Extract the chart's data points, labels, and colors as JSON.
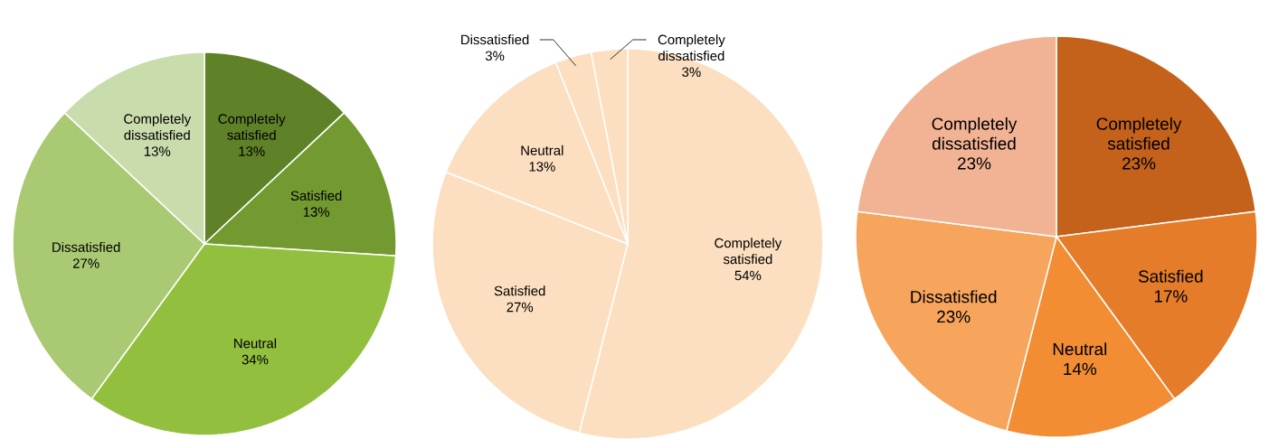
{
  "chart_data": [
    {
      "type": "pie",
      "categories": [
        "Completely satisfied",
        "Satisfied",
        "Neutral",
        "Dissatisfied",
        "Completely dissatisfied"
      ],
      "values": [
        13,
        13,
        34,
        27,
        13
      ],
      "colors": [
        "#5f8128",
        "#739a30",
        "#92c03e",
        "#a9c973",
        "#c9dcac"
      ],
      "value_labels": [
        "13%",
        "13%",
        "34%",
        "27%",
        "13%"
      ]
    },
    {
      "type": "pie",
      "categories": [
        "Completely satisfied",
        "Satisfied",
        "Neutral",
        "Dissatisfied",
        "Completely dissatisfied"
      ],
      "values": [
        54,
        27,
        13,
        3,
        3
      ],
      "colors": [
        "#fcdfc0",
        "#fcdfc0",
        "#fcdfc0",
        "#fcdfc0",
        "#fcdfc0"
      ],
      "value_labels": [
        "54%",
        "27%",
        "13%",
        "3%",
        "3%"
      ]
    },
    {
      "type": "pie",
      "categories": [
        "Completely satisfied",
        "Satisfied",
        "Neutral",
        "Dissatisfied",
        "Completely dissatisfied"
      ],
      "values": [
        23,
        17,
        14,
        23,
        23
      ],
      "colors": [
        "#c4621c",
        "#e47c2a",
        "#f28d33",
        "#f7a45c",
        "#f2b394"
      ],
      "value_labels": [
        "23%",
        "17%",
        "14%",
        "23%",
        "23%"
      ]
    }
  ]
}
